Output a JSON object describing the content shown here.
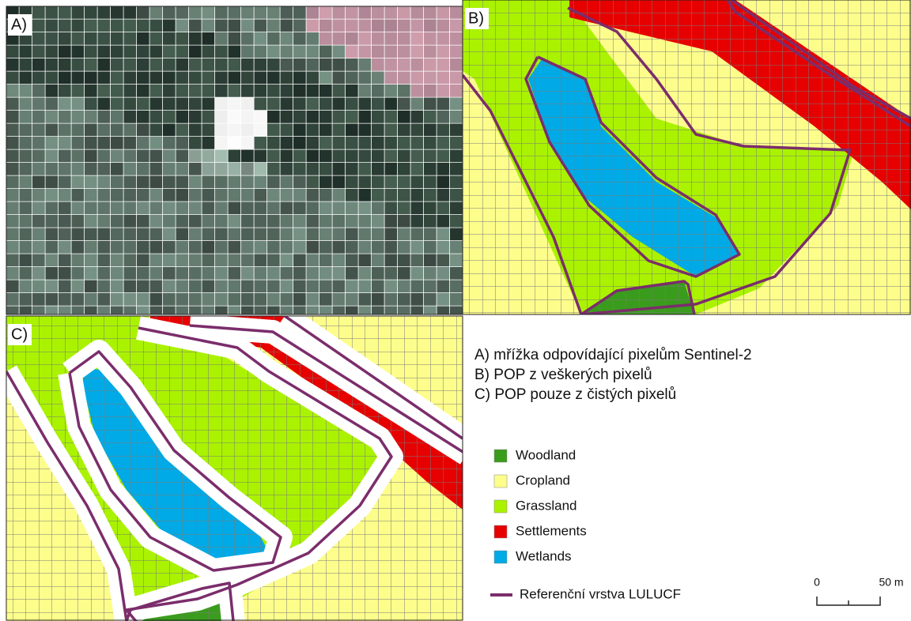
{
  "panels": [
    {
      "label": "A)"
    },
    {
      "label": "B)"
    },
    {
      "label": "C)"
    }
  ],
  "descriptions": [
    "A) mřížka odpovídající pixelům Sentinel-2",
    "B) POP z veškerých pixelů",
    "C) POP pouze z čistých pixelů"
  ],
  "legend": {
    "items": [
      {
        "name": "Woodland",
        "color": "#3a9c1c"
      },
      {
        "name": "Cropland",
        "color": "#fdfd8c"
      },
      {
        "name": "Grassland",
        "color": "#aaf200"
      },
      {
        "name": "Settlements",
        "color": "#e60000"
      },
      {
        "name": "Wetlands",
        "color": "#00aae6"
      }
    ],
    "reference": {
      "name": "Referenční vrstva LULUCF",
      "color": "#7b2d6b"
    }
  },
  "scale_bar": {
    "labels": [
      "0",
      "50 m"
    ]
  }
}
